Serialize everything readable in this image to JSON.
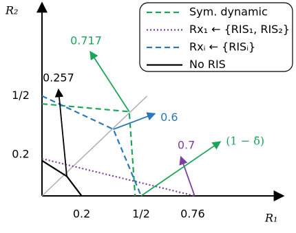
{
  "chart_data": {
    "type": "line",
    "xlabel": "R₁",
    "ylabel": "R₂",
    "xlim": [
      0,
      1.2
    ],
    "ylim": [
      0,
      1
    ],
    "xticks": [
      0.2,
      {
        "value": 0.5,
        "label": "1/2"
      },
      0.76
    ],
    "yticks": [
      0.2,
      {
        "value": 0.5,
        "label": "1/2"
      }
    ],
    "series": [
      {
        "name": "Sym. dynamic",
        "color": "#1aa55a",
        "style": "dashed",
        "x": [
          0,
          0.44,
          0.47
        ],
        "values": [
          0.47,
          0.43,
          0
        ]
      },
      {
        "name": "Rx₁ ← {RIS₁, RIS₂}",
        "color": "#7b3f9e",
        "style": "dotted",
        "x": [
          0,
          0.77
        ],
        "values": [
          0.19,
          0
        ]
      },
      {
        "name": "Rxᵢ ← {RISᵢ}",
        "color": "#2a78b8",
        "style": "dashed",
        "x": [
          0,
          0.36,
          0.5
        ],
        "values": [
          0.51,
          0.34,
          0
        ]
      },
      {
        "name": "No RIS",
        "color": "#000000",
        "style": "solid",
        "x": [
          0,
          0.125,
          0.2
        ],
        "values": [
          0.18,
          0.1,
          0
        ]
      }
    ],
    "reference_line": {
      "color": "#b0b0b0",
      "x": [
        0,
        0.53
      ],
      "values": [
        0,
        0.51
      ]
    },
    "annotations": [
      {
        "text": "0.717",
        "color": "#1aa55a",
        "xy": [
          0.44,
          0.43
        ],
        "xytext": [
          0.243,
          0.737
        ]
      },
      {
        "text": "0.6",
        "color": "#2a78b8",
        "xy": [
          0.36,
          0.34
        ],
        "xytext": [
          0.57,
          0.42
        ]
      },
      {
        "text": "0.257",
        "color": "#000000",
        "xy": [
          0.125,
          0.1
        ],
        "xytext": [
          0.083,
          0.544
        ]
      },
      {
        "text": "0.7",
        "color": "#7b3f9e",
        "xy": [
          0.77,
          0
        ],
        "xytext": [
          0.7,
          0.2
        ]
      },
      {
        "text": "(1 − δ̄)",
        "color": "#1aa55a",
        "xy": [
          0.5,
          0
        ],
        "xytext": [
          0.9,
          0.277
        ]
      }
    ]
  }
}
